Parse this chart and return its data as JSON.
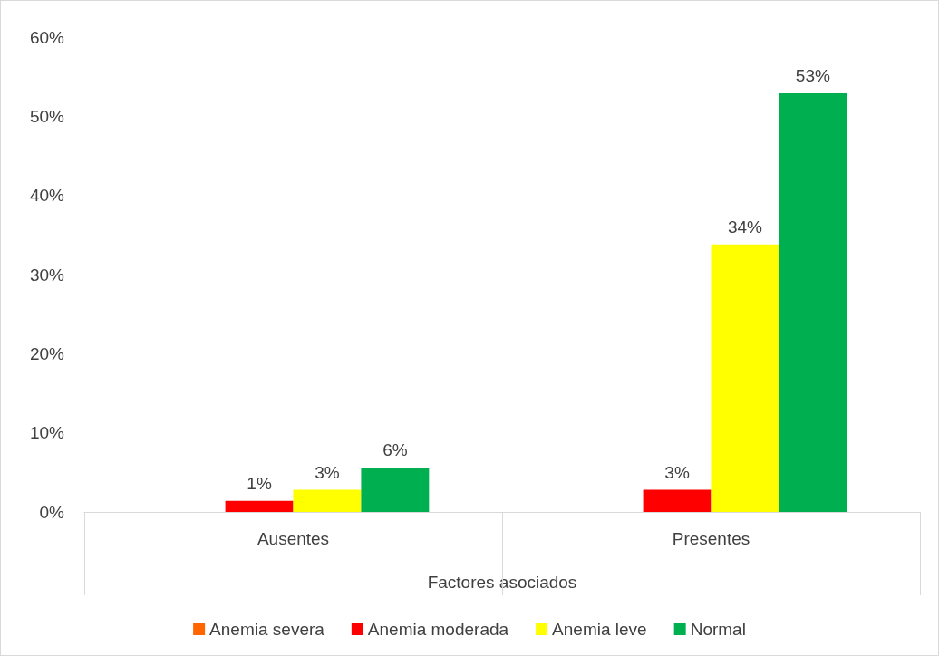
{
  "chart_data": {
    "type": "bar",
    "xlabel": "Factores asociados",
    "categories": [
      "Ausentes",
      "Presentes"
    ],
    "series": [
      {
        "name": "Anemia severa",
        "color": "#ff6600",
        "values": [
          0,
          0
        ],
        "value_labels": [
          null,
          null
        ]
      },
      {
        "name": "Anemia moderada",
        "color": "#ff0000",
        "values": [
          1.4,
          2.8
        ],
        "value_labels": [
          "1%",
          "3%"
        ]
      },
      {
        "name": "Anemia leve",
        "color": "#ffff00",
        "values": [
          2.8,
          33.8
        ],
        "value_labels": [
          "3%",
          "34%"
        ]
      },
      {
        "name": "Normal",
        "color": "#00b050",
        "values": [
          5.6,
          52.9
        ],
        "value_labels": [
          "6%",
          "53%"
        ]
      }
    ],
    "ylim": [
      0,
      60
    ],
    "yticks": [
      {
        "value": 0,
        "label": "0%"
      },
      {
        "value": 10,
        "label": "10%"
      },
      {
        "value": 20,
        "label": "20%"
      },
      {
        "value": 30,
        "label": "30%"
      },
      {
        "value": 40,
        "label": "40%"
      },
      {
        "value": 50,
        "label": "50%"
      },
      {
        "value": 60,
        "label": "60%"
      }
    ],
    "grid": false,
    "legend": "bottom"
  }
}
